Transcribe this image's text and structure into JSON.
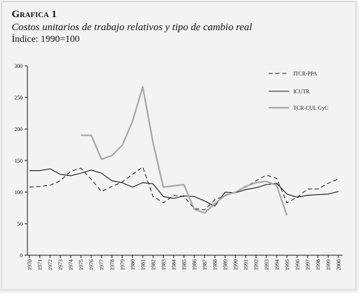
{
  "chart_data": {
    "type": "line",
    "title": "Grafica 1",
    "subtitle": "Costos unitarios de trabajo relativos y tipo de cambio real",
    "subtitle2": "Índice: 1990=100",
    "xlabel": "",
    "ylabel": "",
    "ylim": [
      0,
      300
    ],
    "yticks": [
      0,
      50,
      100,
      150,
      200,
      250,
      300
    ],
    "x": [
      "1970",
      "1971",
      "1972",
      "1973",
      "1974",
      "1975",
      "1976",
      "1977",
      "1978",
      "1979",
      "1980",
      "1981",
      "1982",
      "1983",
      "1984",
      "1985",
      "1986",
      "1987",
      "1988",
      "1989",
      "1990",
      "1991",
      "1992",
      "1993",
      "1994",
      "1995",
      "1996",
      "1997",
      "1998",
      "1999",
      "2000"
    ],
    "grid": false,
    "legend_position": "right",
    "series": [
      {
        "name": "ITCR-PPA",
        "color": "#111111",
        "style": "dashed",
        "values": [
          108,
          109,
          111,
          118,
          133,
          138,
          120,
          101,
          109,
          116,
          128,
          140,
          93,
          83,
          95,
          93,
          74,
          72,
          88,
          94,
          100,
          108,
          118,
          127,
          122,
          83,
          92,
          105,
          105,
          114,
          121
        ]
      },
      {
        "name": "ICUTR",
        "color": "#111111",
        "style": "solid",
        "values": [
          134,
          134,
          137,
          128,
          126,
          130,
          135,
          130,
          118,
          115,
          108,
          115,
          113,
          93,
          90,
          94,
          93,
          86,
          78,
          100,
          99,
          104,
          107,
          112,
          114,
          97,
          92,
          95,
          96,
          97,
          101
        ]
      },
      {
        "name": "TCR-CUL GyC",
        "color": "#a6a6a6",
        "style": "solid-thick",
        "values": [
          null,
          null,
          null,
          null,
          null,
          190,
          190,
          152,
          158,
          174,
          212,
          267,
          178,
          108,
          110,
          112,
          73,
          67,
          82,
          95,
          100,
          109,
          115,
          117,
          111,
          63,
          null,
          null,
          null,
          null,
          null
        ]
      }
    ]
  }
}
